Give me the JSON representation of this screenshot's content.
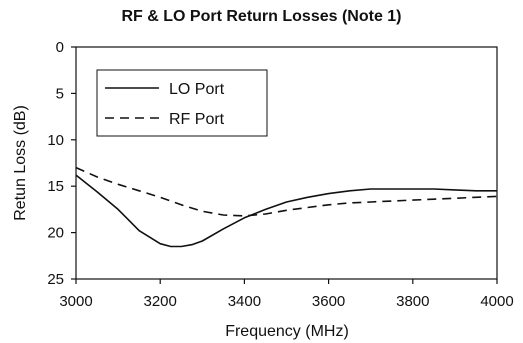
{
  "chart_data": {
    "type": "line",
    "title": "RF & LO Port Return Losses (Note 1)",
    "xlabel": "Frequency (MHz)",
    "ylabel": "Retun Loss (dB)",
    "xlim": [
      3000,
      4000
    ],
    "ylim": [
      0,
      25
    ],
    "y_inverted": true,
    "x_ticks": [
      "3000",
      "3200",
      "3400",
      "3600",
      "3800",
      "4000"
    ],
    "y_ticks": [
      "0",
      "5",
      "10",
      "15",
      "20",
      "25"
    ],
    "grid": false,
    "legend_position": "top-left",
    "series": [
      {
        "name": "LO Port",
        "style": "solid",
        "x": [
          3000,
          3050,
          3100,
          3150,
          3200,
          3225,
          3250,
          3275,
          3300,
          3350,
          3400,
          3450,
          3500,
          3550,
          3600,
          3650,
          3700,
          3750,
          3800,
          3850,
          3900,
          3950,
          4000
        ],
        "y": [
          13.8,
          15.6,
          17.5,
          19.8,
          21.2,
          21.5,
          21.5,
          21.3,
          20.9,
          19.6,
          18.4,
          17.5,
          16.7,
          16.2,
          15.8,
          15.5,
          15.3,
          15.3,
          15.3,
          15.3,
          15.4,
          15.5,
          15.5
        ]
      },
      {
        "name": "RF Port",
        "style": "dashed",
        "x": [
          3000,
          3050,
          3100,
          3150,
          3200,
          3250,
          3300,
          3350,
          3400,
          3450,
          3500,
          3550,
          3600,
          3650,
          3700,
          3750,
          3800,
          3850,
          3900,
          3950,
          4000
        ],
        "y": [
          13.0,
          14.0,
          14.8,
          15.5,
          16.2,
          17.0,
          17.7,
          18.1,
          18.2,
          18.0,
          17.6,
          17.3,
          17.0,
          16.8,
          16.7,
          16.6,
          16.5,
          16.4,
          16.3,
          16.2,
          16.1
        ]
      }
    ]
  }
}
